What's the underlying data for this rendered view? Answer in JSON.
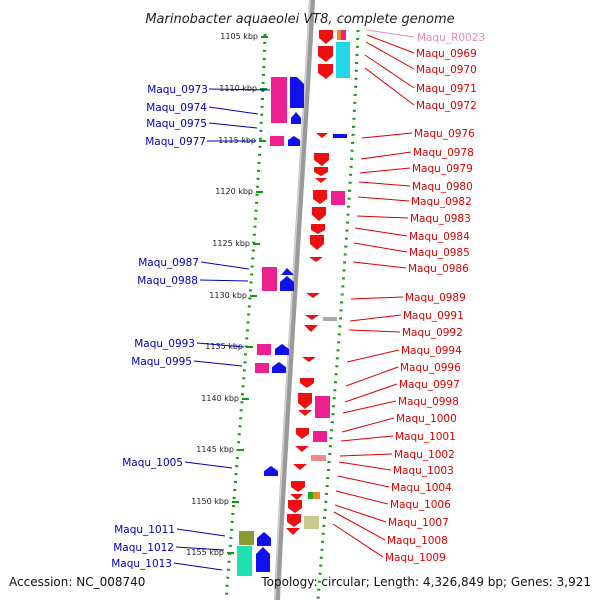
{
  "title": "Marinobacter aquaeolei VT8, complete genome",
  "footer": {
    "accession": "Accession: NC_008740",
    "summary": "Topology: circular; Length: 4,326,849 bp; Genes: 3,921"
  },
  "colors": {
    "left_label": "#0000bb",
    "right_label": "#dd0000",
    "rna_label": "#ee88bb",
    "forward_gene": "#1010ee",
    "reverse_gene": "#ee1010",
    "cog_magenta": "#ee2090",
    "cog_cyan": "#22d8e8",
    "cog_olive": "#8a9a30",
    "cog_teal": "#20e0b0"
  },
  "ticks": [
    "1105 kbp",
    "1110 kbp",
    "1115 kbp",
    "1120 kbp",
    "1125 kbp",
    "1130 kbp",
    "1135 kbp",
    "1140 kbp",
    "1145 kbp",
    "1150 kbp",
    "1155 kbp"
  ],
  "left_labels": [
    "Maqu_0973",
    "Maqu_0974",
    "Maqu_0975",
    "Maqu_0977",
    "Maqu_0987",
    "Maqu_0988",
    "Maqu_0993",
    "Maqu_0995",
    "Maqu_1005",
    "Maqu_1011",
    "Maqu_1012",
    "Maqu_1013"
  ],
  "right_labels": [
    "Maqu_R0023",
    "Maqu_0969",
    "Maqu_0970",
    "Maqu_0971",
    "Maqu_0972",
    "Maqu_0976",
    "Maqu_0978",
    "Maqu_0979",
    "Maqu_0980",
    "Maqu_0982",
    "Maqu_0983",
    "Maqu_0984",
    "Maqu_0985",
    "Maqu_0986",
    "Maqu_0989",
    "Maqu_0991",
    "Maqu_0992",
    "Maqu_0994",
    "Maqu_0996",
    "Maqu_0997",
    "Maqu_0998",
    "Maqu_1000",
    "Maqu_1001",
    "Maqu_1002",
    "Maqu_1003",
    "Maqu_1004",
    "Maqu_1006",
    "Maqu_1007",
    "Maqu_1008",
    "Maqu_1009"
  ]
}
